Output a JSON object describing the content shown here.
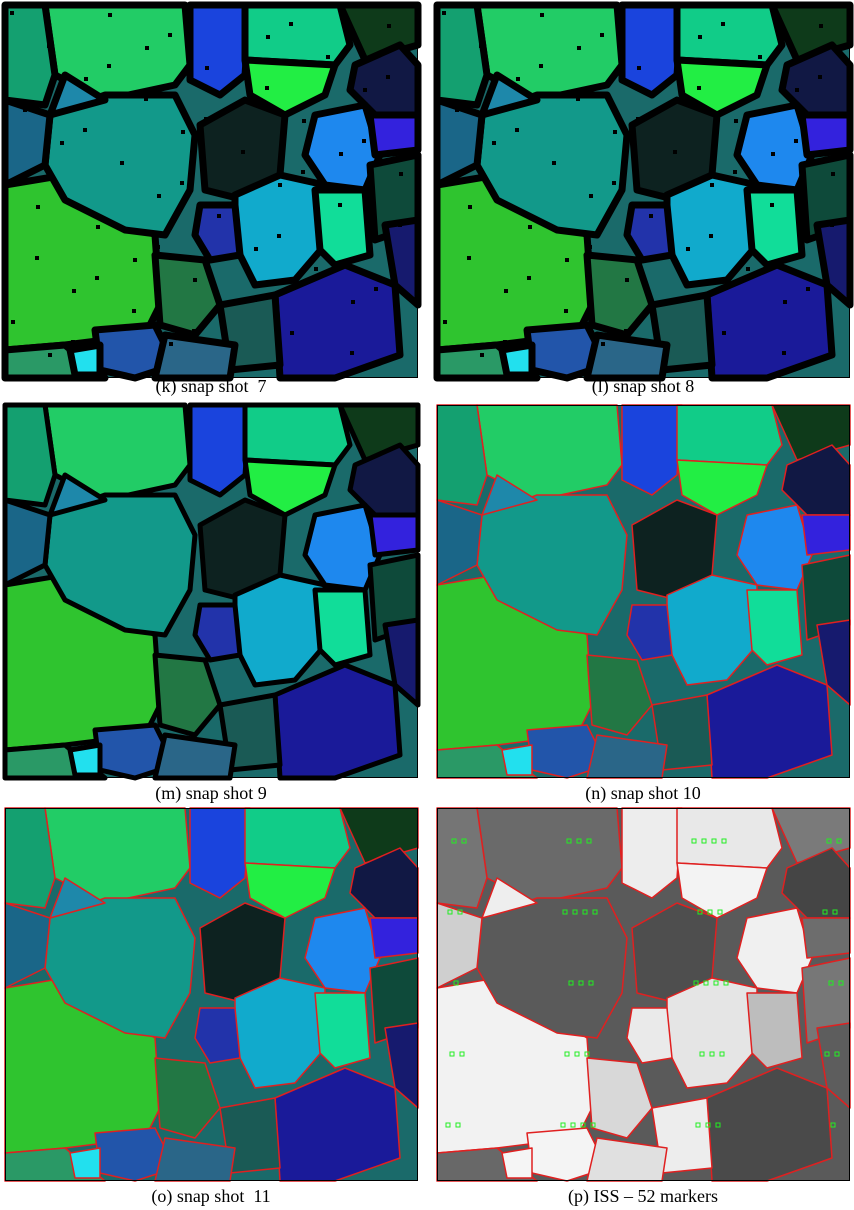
{
  "panels": [
    {
      "caption": "(k) snap shot  7"
    },
    {
      "caption": "(l) snap shot 8"
    },
    {
      "caption": "(m) snap shot 9"
    },
    {
      "caption": "(n) snap shot 10"
    },
    {
      "caption": "(o) snap shot  11"
    },
    {
      "caption": "(p) ISS – 52 markers"
    }
  ]
}
